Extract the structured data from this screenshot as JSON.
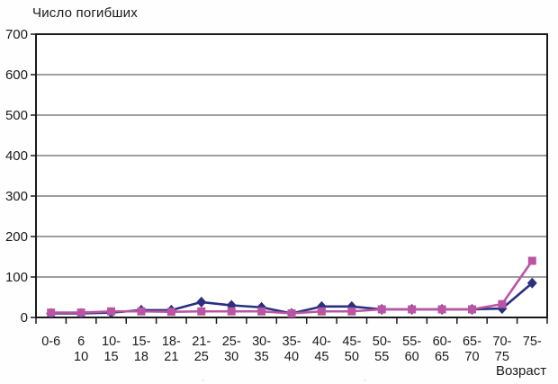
{
  "page": {
    "background": "#fefefe"
  },
  "chart_data": {
    "type": "line",
    "title": "Число погибших",
    "xlabel": "Возраст",
    "ylabel": "",
    "ylim": [
      0,
      700
    ],
    "ytick_step": 100,
    "ytick_labels": [
      "0",
      "100",
      "200",
      "300",
      "400",
      "500",
      "600",
      "700"
    ],
    "grid": "horizontal",
    "legend_position": "none",
    "categories": [
      "0-6",
      "6-10",
      "10-15",
      "15-18",
      "18-21",
      "21-25",
      "25-30",
      "30-35",
      "35-40",
      "40-45",
      "45-50",
      "50-55",
      "55-60",
      "60-65",
      "65-70",
      "70-75",
      "75-"
    ],
    "category_labels_line1": [
      "0-6",
      "6",
      "10-",
      "15-",
      "18-",
      "21-",
      "25-",
      "30-",
      "35-",
      "40-",
      "45-",
      "50-",
      "55-",
      "60-",
      "65-",
      "70-",
      "75-"
    ],
    "category_labels_line2": [
      "",
      "10",
      "15",
      "18",
      "21",
      "25",
      "30",
      "35",
      "40",
      "45",
      "50",
      "55",
      "60",
      "65",
      "70",
      "75",
      ""
    ],
    "series": [
      {
        "label": "",
        "marker": "diamond",
        "color": "#2A307E",
        "values": [
          10,
          10,
          12,
          18,
          18,
          38,
          30,
          25,
          10,
          27,
          27,
          20,
          20,
          20,
          20,
          22,
          85
        ]
      },
      {
        "label": "",
        "marker": "square",
        "color": "#BA55A3",
        "values": [
          12,
          12,
          15,
          15,
          14,
          15,
          15,
          15,
          10,
          15,
          15,
          20,
          20,
          20,
          20,
          33,
          140
        ]
      }
    ],
    "colors": {
      "frame": "#1a1a1a",
      "gridline": "#3c3c3c",
      "plot_background": "#ffffff",
      "text": "#1a1a1a"
    }
  },
  "artifacts": {
    "cropped_text_mark": "”"
  }
}
